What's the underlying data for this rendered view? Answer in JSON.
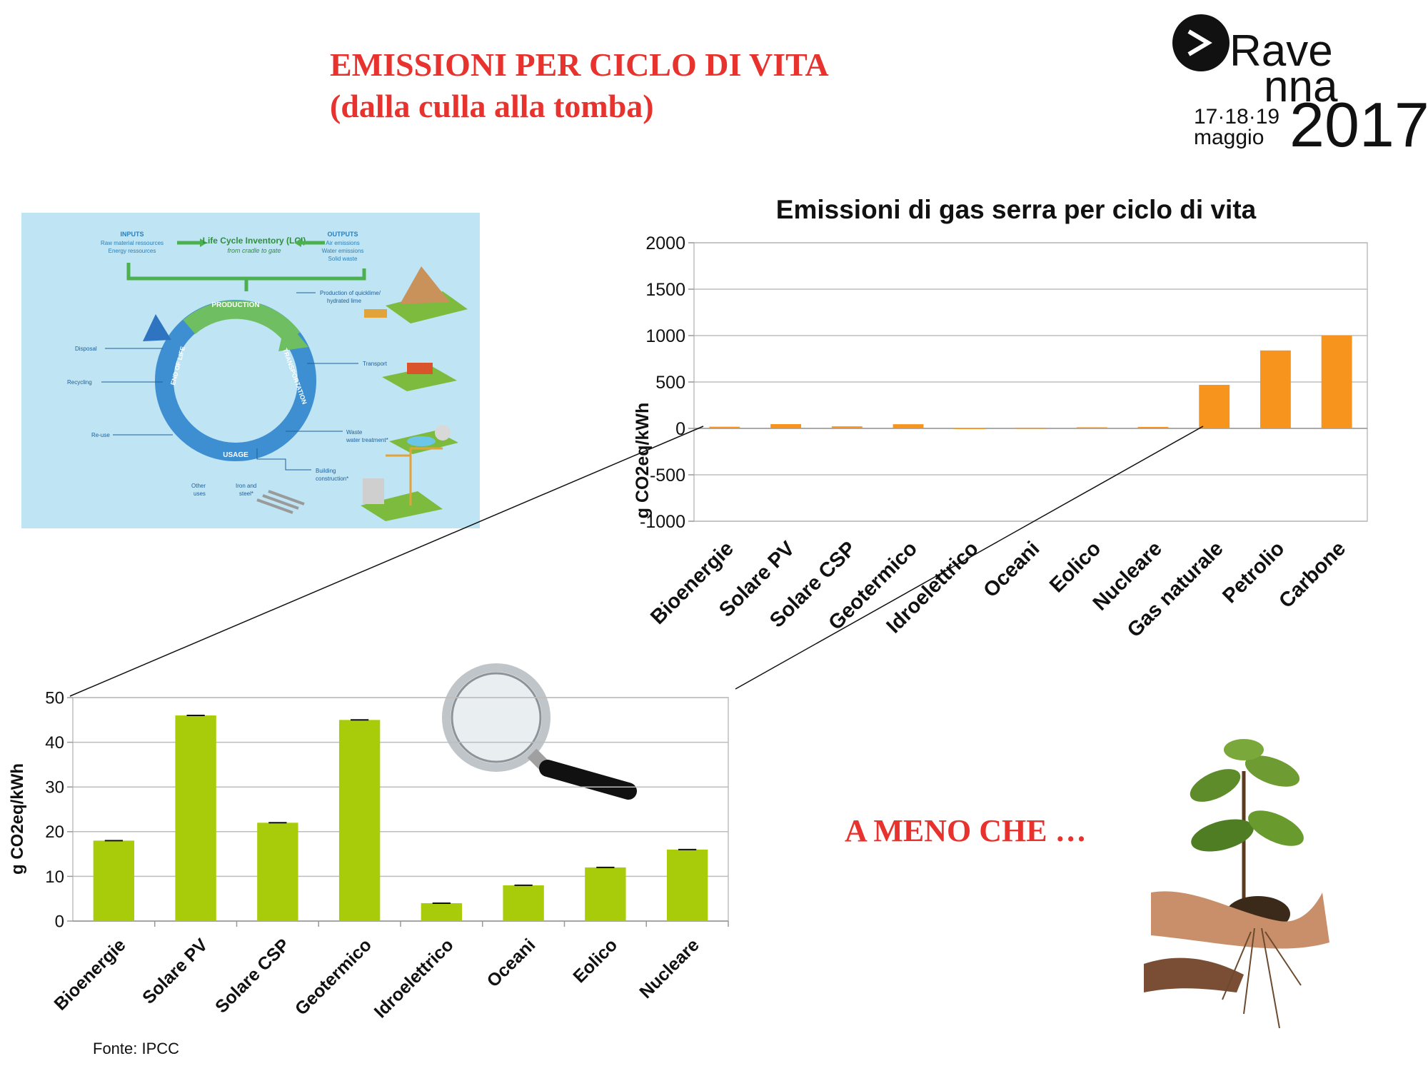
{
  "header": {
    "title_line1": "EMISSIONI PER CICLO DI VITA",
    "title_line2": "(dalla culla alla tomba)"
  },
  "logo": {
    "word1": "Rave",
    "word2": "nna",
    "dates": "17·18·19",
    "month": "maggio",
    "year": "2017"
  },
  "lifecycle": {
    "inputs_title": "INPUTS",
    "inputs_lines": [
      "Raw material ressources",
      "Energy ressources"
    ],
    "lci_title": "Life Cycle Inventory (LCI)",
    "lci_sub": "from cradle to gate",
    "outputs_title": "OUTPUTS",
    "outputs_lines": [
      "Air emissions",
      "Water emissions",
      "Solid waste"
    ],
    "stages": [
      "PRODUCTION",
      "TRANSPORTATION",
      "USAGE",
      "END OF LIFE"
    ],
    "labels": {
      "production_of": "Production of quicklime/",
      "hydrated": "hydrated lime",
      "transport": "Transport",
      "waste": "Waste",
      "water_treatment": "water treatment*",
      "building": "Building",
      "construction": "construction*",
      "iron": "Iron and",
      "steel": "steel*",
      "other": "Other",
      "uses": "uses",
      "disposal": "Disposal",
      "recycling": "Recycling",
      "reuse": "Re-use"
    }
  },
  "cta": {
    "text": "A MENO CHE …"
  },
  "source": {
    "text": "Fonte: IPCC"
  },
  "colors": {
    "title_red": "#e8322e",
    "orange": "#f7941d",
    "green": "#a9cc0a"
  },
  "chart_data": [
    {
      "type": "bar",
      "title": "Emissioni di gas serra per ciclo di vita",
      "ylabel": "g CO2eq/kWh",
      "xlabel": "",
      "categories": [
        "Bioenergie",
        "Solare PV",
        "Solare CSP",
        "Geotermico",
        "Idroelettrico",
        "Oceani",
        "Eolico",
        "Nucleare",
        "Gas naturale",
        "Petrolio",
        "Carbone"
      ],
      "values": [
        18,
        46,
        22,
        45,
        4,
        8,
        12,
        16,
        469,
        840,
        1001
      ],
      "ylim": [
        -1000,
        2000
      ],
      "yticks": [
        -1000,
        -500,
        0,
        500,
        1000,
        1500,
        2000
      ],
      "grid": true,
      "color": "#f7941d"
    },
    {
      "type": "bar",
      "title": "",
      "ylabel": "g CO2eq/kWh",
      "xlabel": "",
      "categories": [
        "Bioenergie",
        "Solare PV",
        "Solare CSP",
        "Geotermico",
        "Idroelettrico",
        "Oceani",
        "Eolico",
        "Nucleare"
      ],
      "values": [
        18,
        46,
        22,
        45,
        4,
        8,
        12,
        16
      ],
      "ylim": [
        0,
        50
      ],
      "yticks": [
        0,
        10,
        20,
        30,
        40,
        50
      ],
      "grid": true,
      "color": "#a9cc0a"
    }
  ]
}
